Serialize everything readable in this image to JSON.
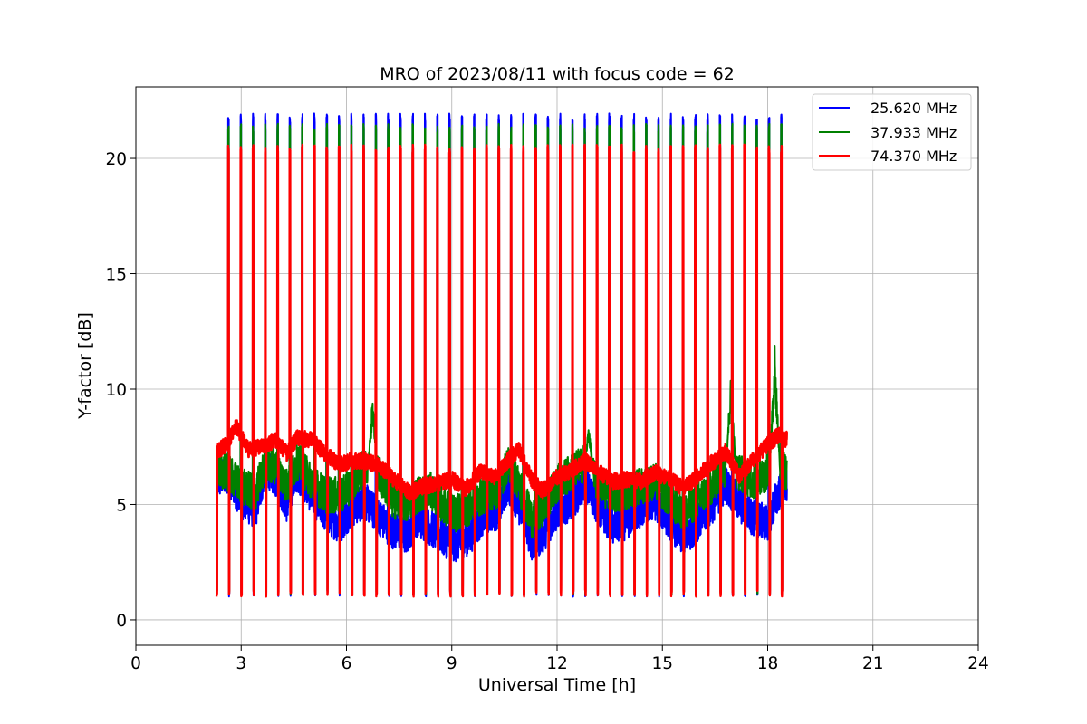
{
  "chart_data": {
    "type": "line",
    "title": "MRO of 2023/08/11 with focus code = 62",
    "xlabel": "Universal Time [h]",
    "ylabel": "Y-factor [dB]",
    "xlim": [
      0,
      24
    ],
    "ylim": [
      -1.1,
      23.1
    ],
    "xticks": [
      0,
      3,
      6,
      9,
      12,
      15,
      18,
      21,
      24
    ],
    "xtick_labels": [
      "0",
      "3",
      "6",
      "9",
      "12",
      "15",
      "18",
      "21",
      "24"
    ],
    "yticks": [
      0,
      5,
      10,
      15,
      20
    ],
    "ytick_labels": [
      "0",
      "5",
      "10",
      "15",
      "20"
    ],
    "grid": true,
    "legend_position": "top-right",
    "colors": {
      "25.620 MHz": "#0000ff",
      "37.933 MHz": "#008000",
      "74.370 MHz": "#ff0000"
    },
    "x_start": 2.3,
    "x_end": 18.55,
    "calibration_period_h": 0.35,
    "series": [
      {
        "name": "25.620 MHz",
        "color": "#0000ff",
        "spike_peak": 21.95,
        "spike_floor": 1.0,
        "baseline": {
          "x": [
            2.3,
            2.6,
            3.0,
            3.4,
            3.7,
            4.0,
            4.3,
            4.6,
            5.0,
            5.4,
            5.8,
            6.1,
            6.5,
            6.9,
            7.3,
            7.7,
            8.0,
            8.4,
            8.8,
            9.1,
            9.5,
            9.9,
            10.3,
            10.6,
            10.9,
            11.3,
            11.6,
            12.0,
            12.4,
            12.8,
            13.2,
            13.6,
            14.0,
            14.4,
            14.8,
            15.2,
            15.6,
            16.0,
            16.4,
            16.8,
            17.2,
            17.6,
            18.0,
            18.3,
            18.55
          ],
          "y": [
            6.0,
            6.3,
            5.2,
            4.7,
            6.6,
            6.1,
            5.0,
            6.4,
            5.4,
            4.6,
            4.1,
            4.7,
            5.2,
            4.5,
            3.9,
            3.6,
            4.4,
            4.0,
            3.5,
            3.3,
            3.6,
            4.5,
            4.7,
            5.9,
            5.0,
            3.3,
            3.7,
            4.7,
            5.1,
            5.9,
            4.8,
            4.0,
            4.3,
            4.8,
            5.1,
            4.3,
            3.5,
            4.2,
            4.9,
            5.9,
            5.0,
            4.4,
            4.2,
            5.5,
            5.8
          ]
        }
      },
      {
        "name": "37.933 MHz",
        "color": "#008000",
        "spike_peak": 21.5,
        "spike_floor": 1.1,
        "baseline": {
          "x": [
            2.3,
            2.6,
            3.0,
            3.4,
            3.7,
            4.0,
            4.3,
            4.6,
            5.0,
            5.4,
            5.8,
            6.1,
            6.5,
            6.9,
            7.3,
            7.7,
            8.0,
            8.4,
            8.8,
            9.1,
            9.5,
            9.9,
            10.3,
            10.6,
            10.9,
            11.3,
            11.6,
            12.0,
            12.4,
            12.8,
            13.2,
            13.6,
            14.0,
            14.4,
            14.8,
            15.2,
            15.6,
            16.0,
            16.4,
            16.8,
            17.2,
            17.6,
            18.0,
            18.3,
            18.55
          ],
          "y": [
            6.6,
            6.4,
            5.8,
            5.5,
            6.8,
            6.6,
            5.8,
            6.9,
            6.0,
            5.4,
            5.4,
            5.8,
            6.6,
            6.4,
            5.2,
            5.0,
            5.4,
            5.6,
            4.9,
            4.6,
            4.9,
            5.4,
            5.6,
            6.8,
            5.9,
            4.3,
            4.9,
            5.9,
            6.4,
            6.8,
            5.8,
            5.4,
            5.6,
            5.8,
            6.0,
            5.2,
            4.6,
            5.2,
            5.8,
            6.6,
            6.4,
            6.0,
            6.4,
            6.6,
            6.4
          ]
        },
        "bursts": [
          {
            "x": 6.75,
            "y": 9.8
          },
          {
            "x": 12.9,
            "y": 8.4
          },
          {
            "x": 16.95,
            "y": 10.6
          },
          {
            "x": 18.2,
            "y": 12.0
          }
        ]
      },
      {
        "name": "74.370 MHz",
        "color": "#ff0000",
        "spike_peak": 20.6,
        "spike_floor": 1.0,
        "baseline": {
          "x": [
            2.3,
            2.6,
            2.85,
            3.2,
            3.6,
            4.0,
            4.3,
            4.6,
            5.0,
            5.4,
            5.8,
            6.1,
            6.5,
            6.9,
            7.2,
            7.5,
            7.8,
            8.2,
            8.6,
            9.0,
            9.4,
            9.8,
            10.2,
            10.6,
            10.9,
            11.3,
            11.6,
            12.0,
            12.4,
            12.8,
            13.2,
            13.6,
            14.0,
            14.4,
            14.8,
            15.2,
            15.6,
            16.0,
            16.4,
            16.8,
            17.2,
            17.6,
            18.0,
            18.3,
            18.55
          ],
          "y": [
            7.3,
            7.6,
            8.4,
            7.4,
            7.5,
            7.8,
            7.2,
            7.9,
            7.8,
            7.2,
            6.7,
            6.9,
            6.9,
            6.7,
            6.3,
            5.9,
            5.5,
            5.8,
            5.9,
            6.1,
            5.7,
            6.4,
            6.2,
            6.9,
            7.4,
            6.0,
            5.6,
            6.2,
            6.5,
            6.9,
            6.4,
            6.0,
            6.1,
            6.0,
            6.4,
            6.1,
            5.7,
            6.2,
            6.8,
            7.3,
            6.2,
            7.0,
            7.6,
            8.0,
            7.8
          ]
        }
      }
    ]
  }
}
